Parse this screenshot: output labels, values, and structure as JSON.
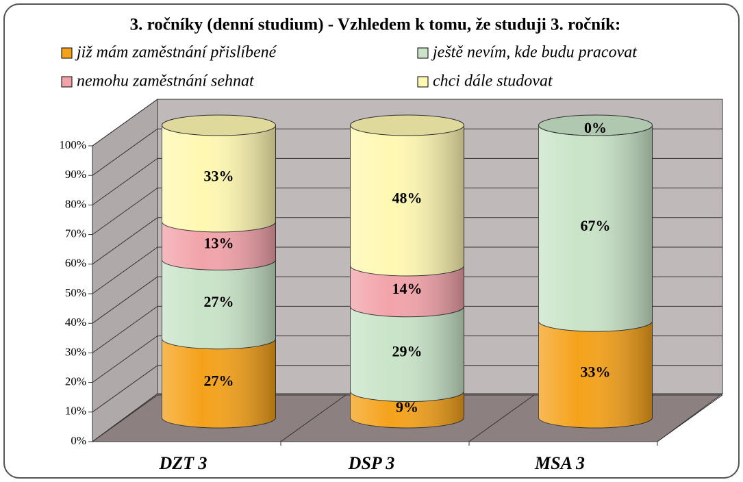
{
  "chart_data": {
    "type": "stacked-cylinder",
    "title": "3. ročníky (denní studium) - Vzhledem k tomu, že studuji 3. ročník:",
    "categories": [
      "DZT 3",
      "DSP 3",
      "MSA 3"
    ],
    "series": [
      {
        "name": "již mám zaměstnání přislíbené",
        "color": "#f5a21b",
        "values": [
          27,
          9,
          33
        ],
        "value_labels": [
          "27%",
          "9%",
          "33%"
        ]
      },
      {
        "name": "ještě nevím, kde budu pracovat",
        "color": "#c9e4c8",
        "values": [
          27,
          29,
          67
        ],
        "value_labels": [
          "27%",
          "29%",
          "67%"
        ]
      },
      {
        "name": "nemohu zaměstnání sehnat",
        "color": "#f2a3aa",
        "values": [
          13,
          14,
          0
        ],
        "value_labels": [
          "13%",
          "14%",
          null
        ]
      },
      {
        "name": "chci dále studovat",
        "color": "#fff8b2",
        "values": [
          33,
          48,
          0
        ],
        "value_labels": [
          "33%",
          "48%",
          "0%"
        ]
      }
    ],
    "ylim": [
      0,
      100
    ],
    "yticks": [
      {
        "value": 0,
        "label": "0%"
      },
      {
        "value": 10,
        "label": "10%"
      },
      {
        "value": 20,
        "label": "20%"
      },
      {
        "value": 30,
        "label": "30%"
      },
      {
        "value": 40,
        "label": "40%"
      },
      {
        "value": 50,
        "label": "50%"
      },
      {
        "value": 60,
        "label": "60%"
      },
      {
        "value": 70,
        "label": "70%"
      },
      {
        "value": 80,
        "label": "80%"
      },
      {
        "value": 90,
        "label": "90%"
      },
      {
        "value": 100,
        "label": "100%"
      }
    ],
    "grid": true,
    "legend": "top"
  }
}
